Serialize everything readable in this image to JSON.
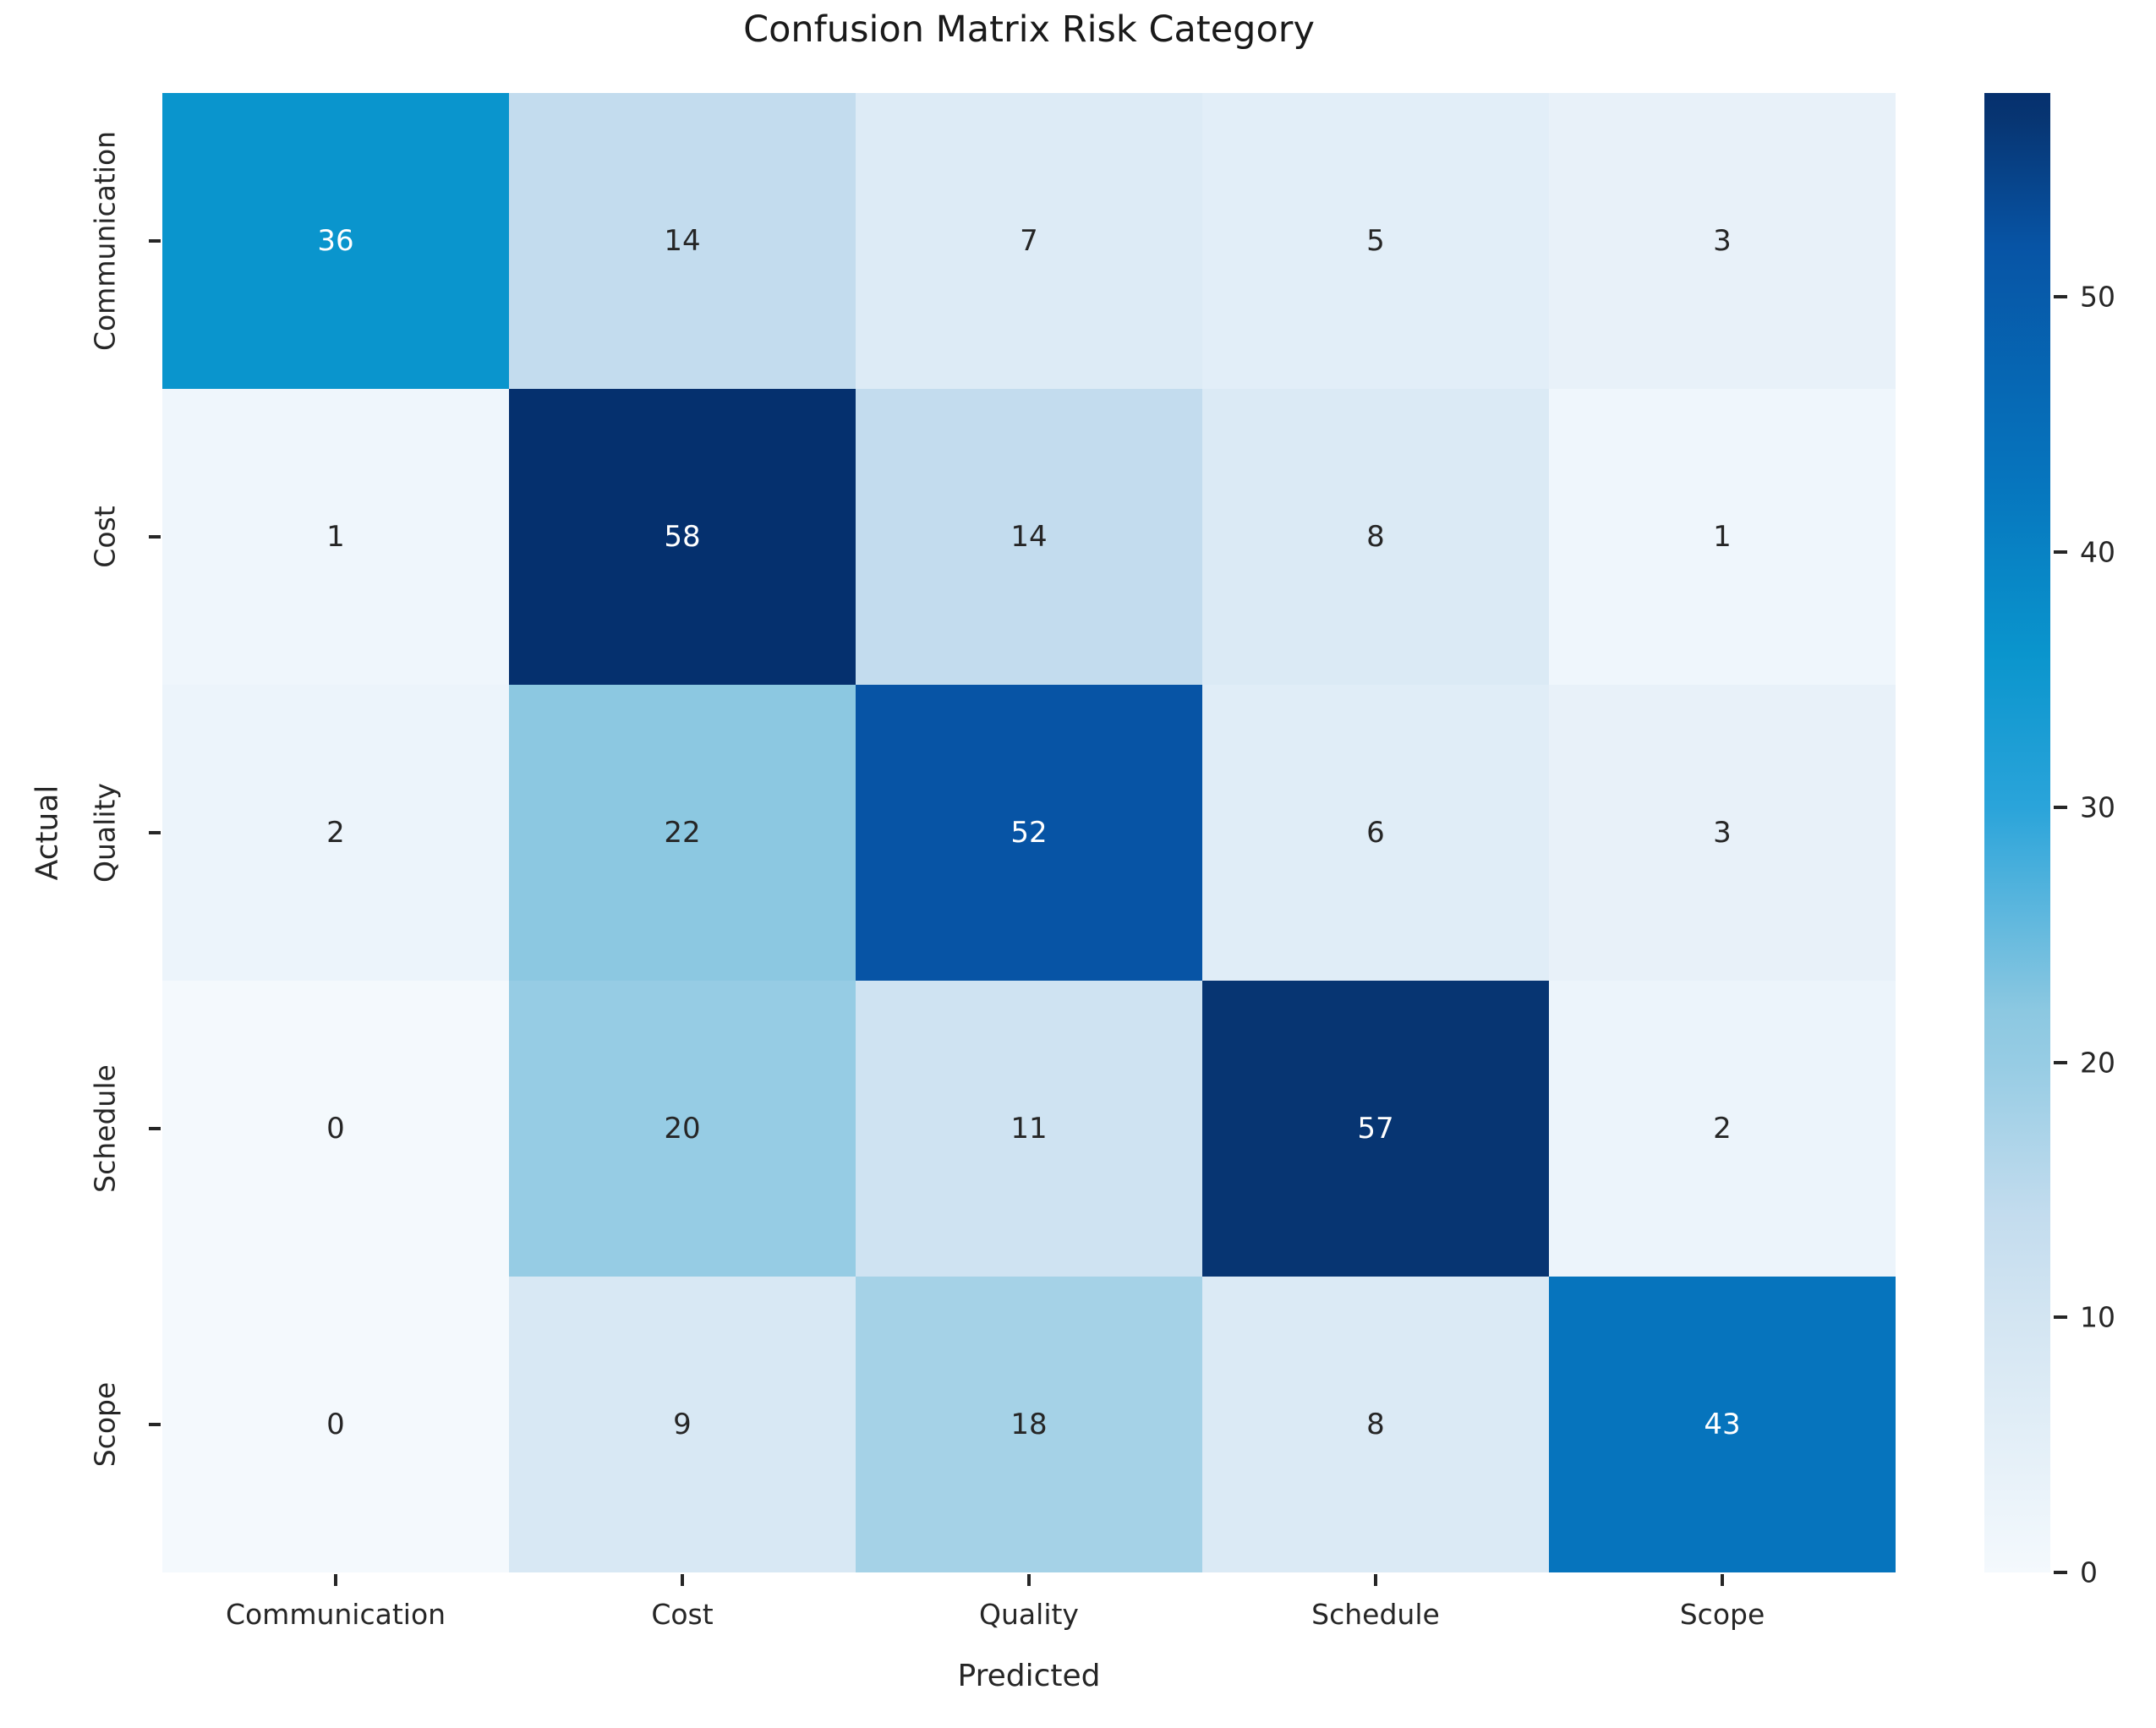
{
  "figure": {
    "title": "Confusion Matrix Risk Category",
    "x_axis_label": "Predicted",
    "y_axis_label": "Actual"
  },
  "chart_data": {
    "type": "heatmap",
    "title": "Confusion Matrix Risk Category",
    "xlabel": "Predicted",
    "ylabel": "Actual",
    "x_categories": [
      "Communication",
      "Cost",
      "Quality",
      "Schedule",
      "Scope"
    ],
    "y_categories": [
      "Communication",
      "Cost",
      "Quality",
      "Schedule",
      "Scope"
    ],
    "matrix": [
      [
        36,
        14,
        7,
        5,
        3
      ],
      [
        1,
        58,
        14,
        8,
        1
      ],
      [
        2,
        22,
        52,
        6,
        3
      ],
      [
        0,
        20,
        11,
        57,
        2
      ],
      [
        0,
        9,
        18,
        8,
        43
      ]
    ],
    "vmin": 0,
    "vmax": 58,
    "colorbar_ticks": [
      0,
      10,
      20,
      30,
      40,
      50
    ],
    "colorbar_position": "right",
    "grid": false,
    "annotations": true
  },
  "colors": {
    "background": "#ffffff",
    "annotation_dark": "#262626",
    "annotation_light": "#ffffff",
    "tick_color": "#262626",
    "value_colors": {
      "0": "#f4f9fd",
      "1": "#eff6fc",
      "2": "#ecf4fb",
      "3": "#e8f1f9",
      "5": "#e2eef8",
      "6": "#e0edf7",
      "7": "#ddebf6",
      "8": "#dbeaf5",
      "9": "#d8e8f4",
      "11": "#cfe3f2",
      "14": "#c3dcee",
      "18": "#a5d2e7",
      "20": "#96cce4",
      "22": "#8cc8e1",
      "36": "#0a95cd",
      "43": "#0674bd",
      "52": "#0754a5",
      "57": "#073572",
      "58": "#05306e"
    },
    "colorbar_stops": [
      {
        "v": 0,
        "c": "#f4f9fd"
      },
      {
        "v": 10,
        "c": "#d3e5f2"
      },
      {
        "v": 14,
        "c": "#c3dcee"
      },
      {
        "v": 20,
        "c": "#96cce4"
      },
      {
        "v": 22,
        "c": "#8cc8e1"
      },
      {
        "v": 30,
        "c": "#2aa4da"
      },
      {
        "v": 36,
        "c": "#0a95cd"
      },
      {
        "v": 43,
        "c": "#0674bd"
      },
      {
        "v": 52,
        "c": "#0754a5"
      },
      {
        "v": 57,
        "c": "#073572"
      },
      {
        "v": 58,
        "c": "#05306e"
      }
    ]
  }
}
